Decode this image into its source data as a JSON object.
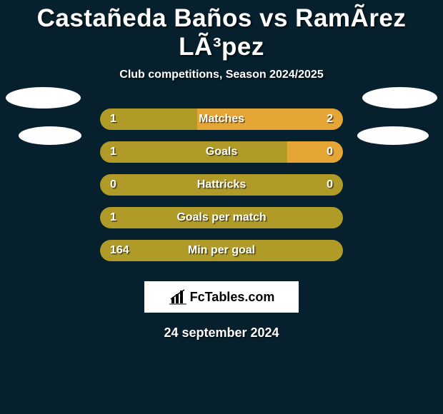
{
  "background_color": "#06202d",
  "text_color": "#ffffff",
  "title": "Castañeda Baños vs RamÃ­rez LÃ³pez",
  "subtitle": "Club competitions, Season 2024/2025",
  "date": "24 september 2024",
  "logo_text": "FcTables.com",
  "bars": {
    "left_color": "#b09b29",
    "right_color": "#e6a636",
    "track_bg": "#06202d",
    "label_fontsize": 16,
    "rows": [
      {
        "label": "Matches",
        "left": "1",
        "right": "2",
        "left_pct": 40,
        "right_pct": 60
      },
      {
        "label": "Goals",
        "left": "1",
        "right": "0",
        "left_pct": 77,
        "right_pct": 23
      },
      {
        "label": "Hattricks",
        "left": "0",
        "right": "0",
        "left_pct": 100,
        "right_pct": 0
      },
      {
        "label": "Goals per match",
        "left": "1",
        "right": "",
        "left_pct": 100,
        "right_pct": 0
      },
      {
        "label": "Min per goal",
        "left": "164",
        "right": "",
        "left_pct": 100,
        "right_pct": 0
      }
    ]
  }
}
